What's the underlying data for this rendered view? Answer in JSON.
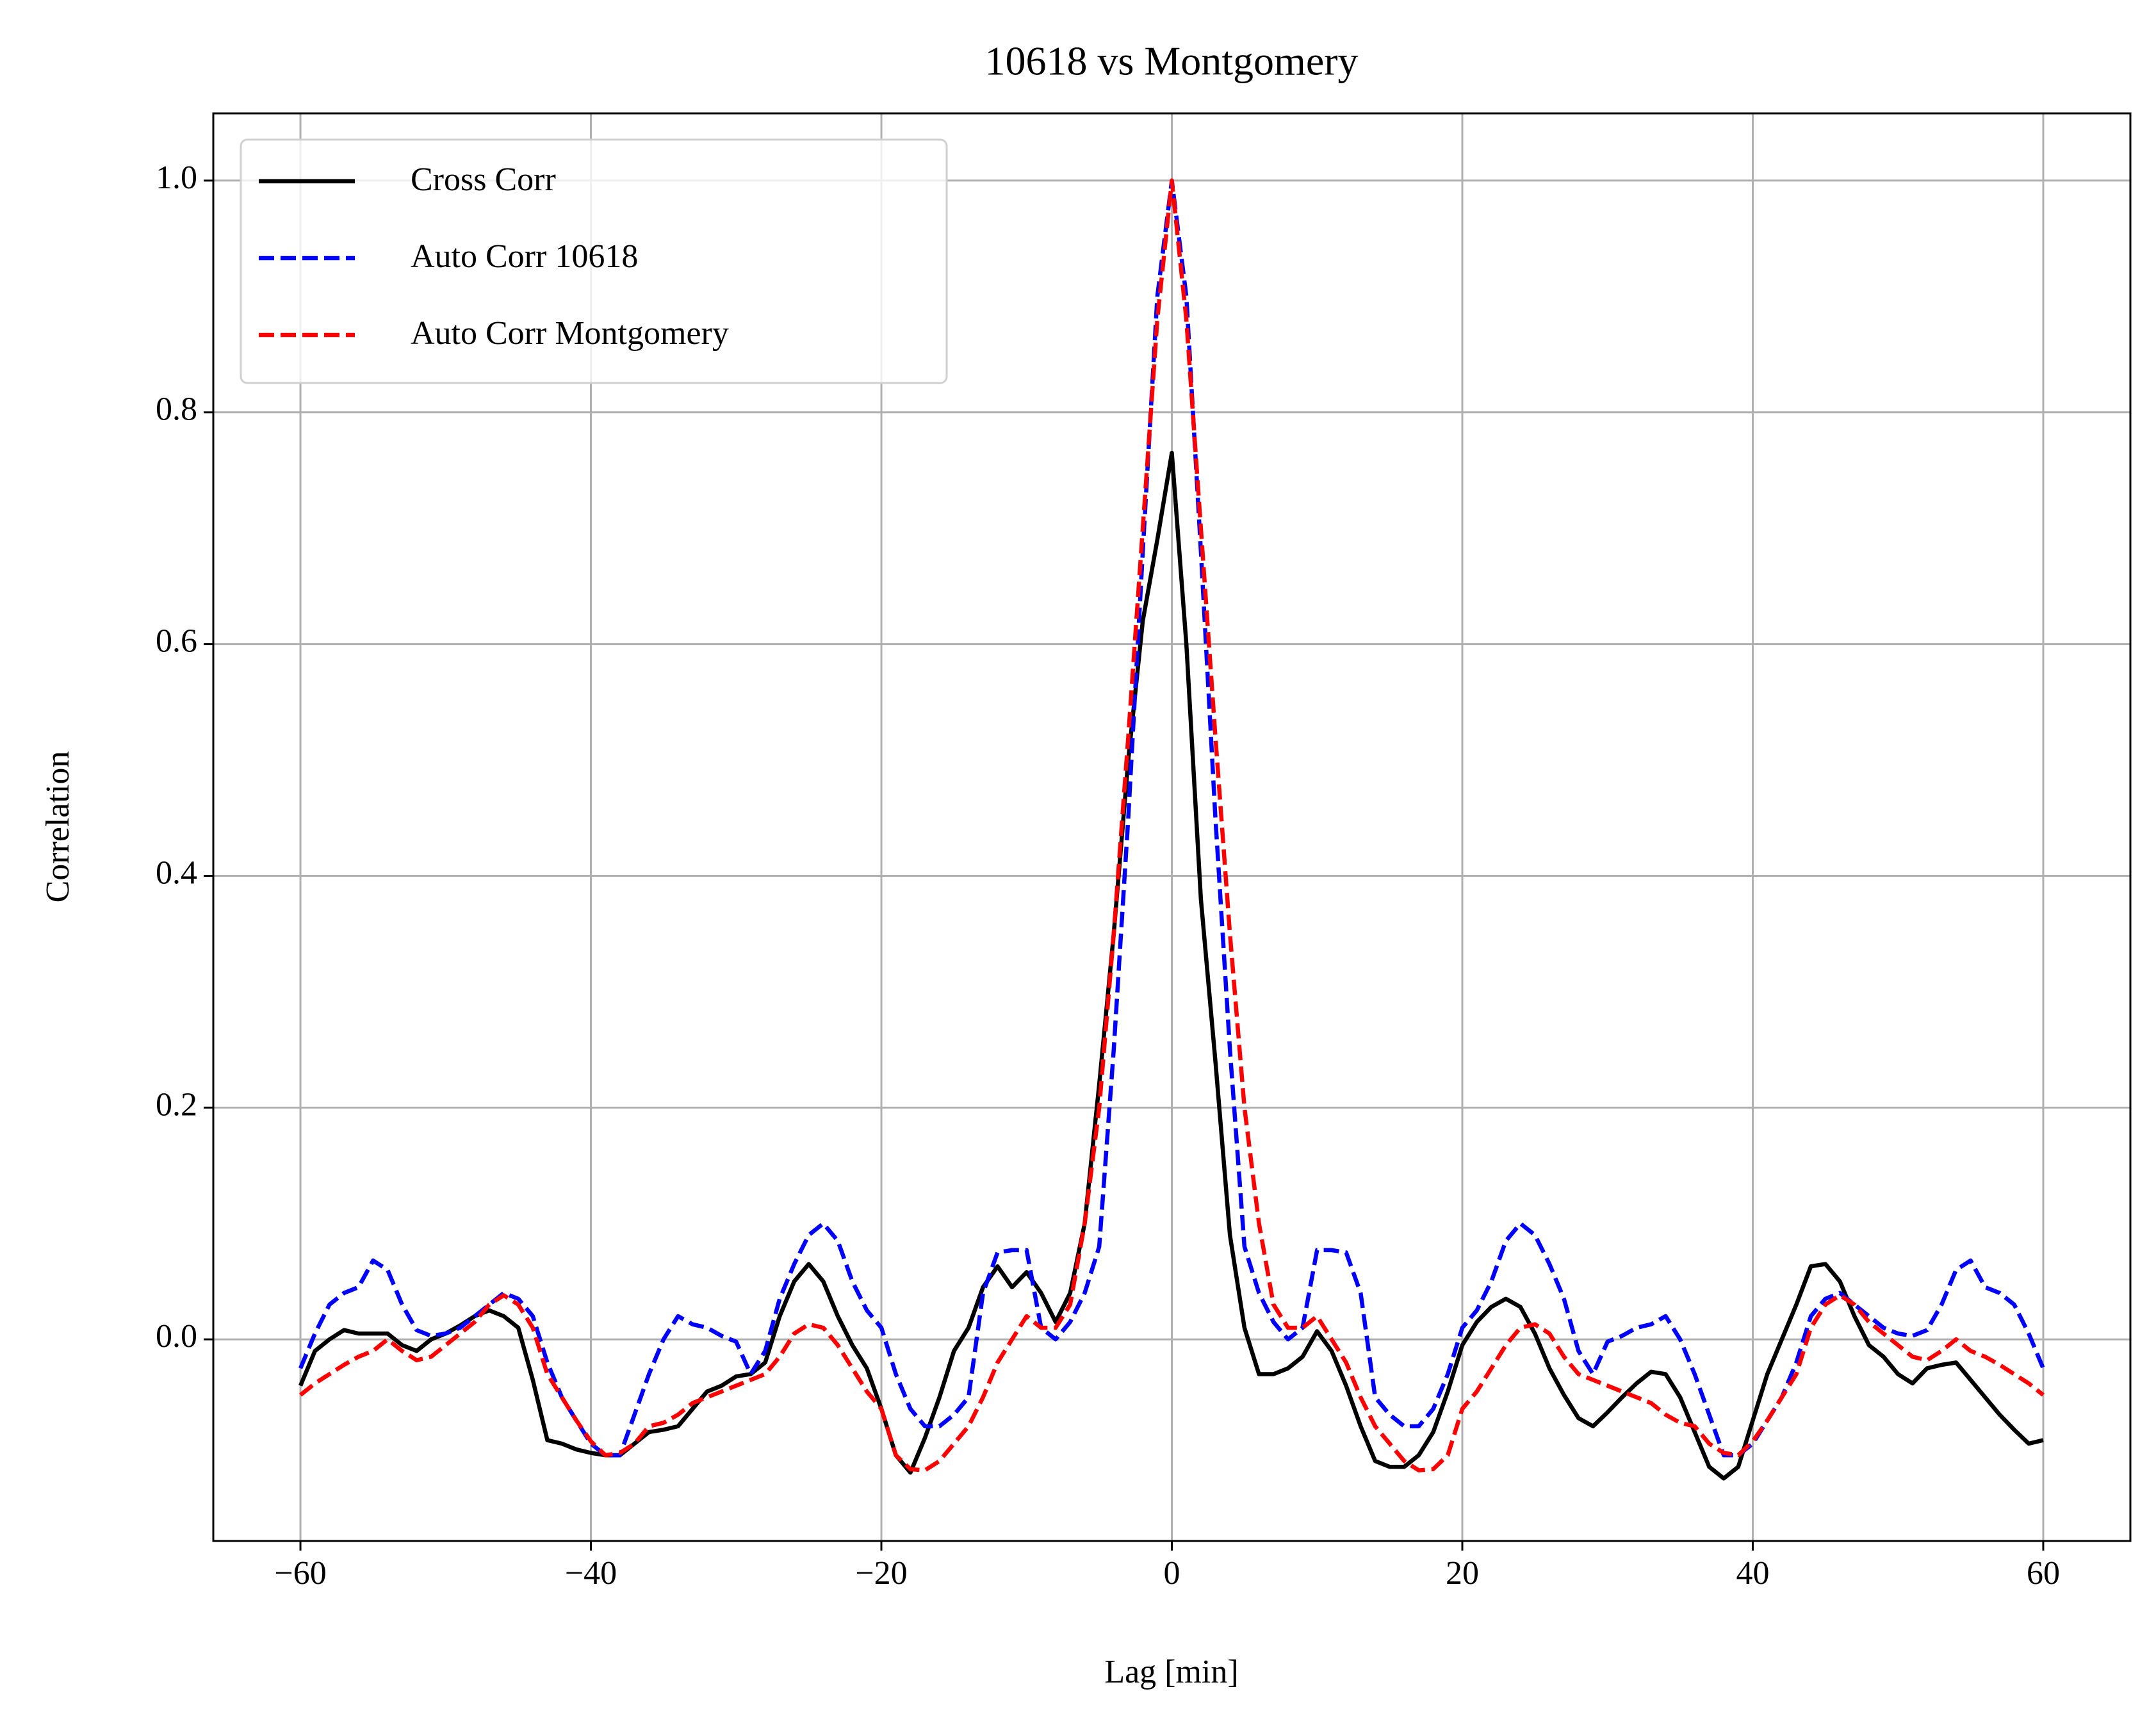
{
  "chart_data": {
    "type": "line",
    "title": "10618 vs Montgomery",
    "xlabel": "Lag [min]",
    "ylabel": "Correlation",
    "x": [
      -60,
      -59,
      -58,
      -57,
      -56,
      -55,
      -54,
      -53,
      -52,
      -51,
      -50,
      -49,
      -48,
      -47,
      -46,
      -45,
      -44,
      -43,
      -42,
      -41,
      -40,
      -39,
      -38,
      -37,
      -36,
      -35,
      -34,
      -33,
      -32,
      -31,
      -30,
      -29,
      -28,
      -27,
      -26,
      -25,
      -24,
      -23,
      -22,
      -21,
      -20,
      -19,
      -18,
      -17,
      -16,
      -15,
      -14,
      -13,
      -12,
      -11,
      -10,
      -9,
      -8,
      -7,
      -6,
      -5,
      -4,
      -3,
      -2,
      -1,
      0,
      1,
      2,
      3,
      4,
      5,
      6,
      7,
      8,
      9,
      10,
      11,
      12,
      13,
      14,
      15,
      16,
      17,
      18,
      19,
      20,
      21,
      22,
      23,
      24,
      25,
      26,
      27,
      28,
      29,
      30,
      31,
      32,
      33,
      34,
      35,
      36,
      37,
      38,
      39,
      40,
      41,
      42,
      43,
      44,
      45,
      46,
      47,
      48,
      49,
      50,
      51,
      52,
      53,
      54,
      55,
      56,
      57,
      58,
      59,
      60
    ],
    "series": [
      {
        "name": "Cross Corr",
        "color": "#000000",
        "linestyle": "solid",
        "values": [
          -0.04,
          -0.01,
          0.0,
          0.008,
          0.005,
          0.005,
          0.005,
          -0.005,
          -0.01,
          0.0,
          0.005,
          0.012,
          0.02,
          0.025,
          0.02,
          0.01,
          -0.035,
          -0.087,
          -0.09,
          -0.095,
          -0.098,
          -0.1,
          -0.1,
          -0.09,
          -0.08,
          -0.078,
          -0.075,
          -0.06,
          -0.045,
          -0.04,
          -0.032,
          -0.03,
          -0.02,
          0.02,
          0.05,
          0.065,
          0.05,
          0.02,
          -0.005,
          -0.025,
          -0.06,
          -0.1,
          -0.115,
          -0.085,
          -0.05,
          -0.01,
          0.01,
          0.045,
          0.063,
          0.045,
          0.058,
          0.04,
          0.015,
          0.04,
          0.1,
          0.22,
          0.35,
          0.5,
          0.62,
          0.69,
          0.765,
          0.6,
          0.38,
          0.24,
          0.09,
          0.01,
          -0.03,
          -0.03,
          -0.025,
          -0.015,
          0.007,
          -0.01,
          -0.04,
          -0.075,
          -0.105,
          -0.11,
          -0.11,
          -0.1,
          -0.08,
          -0.045,
          -0.005,
          0.015,
          0.028,
          0.035,
          0.028,
          0.005,
          -0.025,
          -0.048,
          -0.068,
          -0.075,
          -0.063,
          -0.05,
          -0.038,
          -0.028,
          -0.03,
          -0.05,
          -0.08,
          -0.11,
          -0.12,
          -0.11,
          -0.07,
          -0.03,
          0.0,
          0.03,
          0.063,
          0.065,
          0.05,
          0.02,
          -0.005,
          -0.015,
          -0.03,
          -0.038,
          -0.025,
          -0.022,
          -0.02,
          -0.035,
          -0.05,
          -0.065,
          -0.078,
          -0.09,
          -0.087
        ]
      },
      {
        "name": "Auto Corr 10618",
        "color": "#0000ff",
        "linestyle": "dashed",
        "values": [
          -0.025,
          0.005,
          0.03,
          0.04,
          0.045,
          0.068,
          0.06,
          0.03,
          0.008,
          0.003,
          0.005,
          0.01,
          0.02,
          0.03,
          0.04,
          0.035,
          0.02,
          -0.02,
          -0.05,
          -0.07,
          -0.09,
          -0.1,
          -0.1,
          -0.065,
          -0.03,
          0.0,
          0.02,
          0.013,
          0.01,
          0.003,
          -0.002,
          -0.03,
          -0.01,
          0.035,
          0.065,
          0.09,
          0.1,
          0.085,
          0.05,
          0.025,
          0.01,
          -0.03,
          -0.06,
          -0.075,
          -0.075,
          -0.065,
          -0.05,
          0.04,
          0.075,
          0.077,
          0.077,
          0.01,
          0.0,
          0.015,
          0.04,
          0.08,
          0.25,
          0.45,
          0.68,
          0.9,
          1.0,
          0.9,
          0.68,
          0.45,
          0.25,
          0.08,
          0.04,
          0.015,
          0.0,
          0.01,
          0.077,
          0.077,
          0.075,
          0.04,
          -0.05,
          -0.065,
          -0.075,
          -0.075,
          -0.06,
          -0.03,
          0.01,
          0.025,
          0.05,
          0.085,
          0.1,
          0.09,
          0.065,
          0.035,
          -0.01,
          -0.03,
          -0.002,
          0.003,
          0.01,
          0.013,
          0.02,
          0.0,
          -0.03,
          -0.065,
          -0.1,
          -0.1,
          -0.09,
          -0.07,
          -0.05,
          -0.02,
          0.02,
          0.035,
          0.04,
          0.03,
          0.02,
          0.01,
          0.005,
          0.003,
          0.008,
          0.03,
          0.06,
          0.068,
          0.045,
          0.04,
          0.03,
          0.005,
          -0.025
        ]
      },
      {
        "name": "Auto Corr Montgomery",
        "color": "#ff0000",
        "linestyle": "dashed",
        "values": [
          -0.048,
          -0.038,
          -0.03,
          -0.022,
          -0.015,
          -0.01,
          0.0,
          -0.01,
          -0.018,
          -0.015,
          -0.005,
          0.005,
          0.015,
          0.03,
          0.038,
          0.03,
          0.01,
          -0.03,
          -0.05,
          -0.07,
          -0.088,
          -0.1,
          -0.098,
          -0.09,
          -0.075,
          -0.072,
          -0.065,
          -0.055,
          -0.05,
          -0.045,
          -0.04,
          -0.035,
          -0.03,
          -0.015,
          0.005,
          0.013,
          0.01,
          -0.005,
          -0.025,
          -0.045,
          -0.06,
          -0.1,
          -0.112,
          -0.113,
          -0.105,
          -0.09,
          -0.075,
          -0.05,
          -0.02,
          0.0,
          0.02,
          0.01,
          0.01,
          0.03,
          0.1,
          0.2,
          0.35,
          0.52,
          0.7,
          0.88,
          1.0,
          0.88,
          0.7,
          0.52,
          0.35,
          0.2,
          0.1,
          0.03,
          0.01,
          0.01,
          0.02,
          0.0,
          -0.02,
          -0.05,
          -0.075,
          -0.09,
          -0.105,
          -0.113,
          -0.112,
          -0.1,
          -0.06,
          -0.045,
          -0.025,
          -0.005,
          0.01,
          0.013,
          0.005,
          -0.015,
          -0.03,
          -0.035,
          -0.04,
          -0.045,
          -0.05,
          -0.055,
          -0.065,
          -0.072,
          -0.075,
          -0.09,
          -0.098,
          -0.1,
          -0.088,
          -0.07,
          -0.05,
          -0.03,
          0.01,
          0.03,
          0.038,
          0.03,
          0.015,
          0.005,
          -0.005,
          -0.015,
          -0.018,
          -0.01,
          0.0,
          -0.01,
          -0.015,
          -0.022,
          -0.03,
          -0.038,
          -0.048
        ]
      }
    ],
    "xlim": [
      -66,
      66
    ],
    "ylim": [
      -0.174,
      1.058
    ],
    "xticks": [
      {
        "value": -60,
        "label": "−60"
      },
      {
        "value": -40,
        "label": "−40"
      },
      {
        "value": -20,
        "label": "−20"
      },
      0,
      20,
      40,
      60
    ],
    "yticks": [
      {
        "value": 0,
        "label": "0.0"
      },
      0.2,
      0.4,
      0.6,
      0.8,
      {
        "value": 1,
        "label": "1.0"
      }
    ],
    "grid": true,
    "legend": "upper left"
  }
}
